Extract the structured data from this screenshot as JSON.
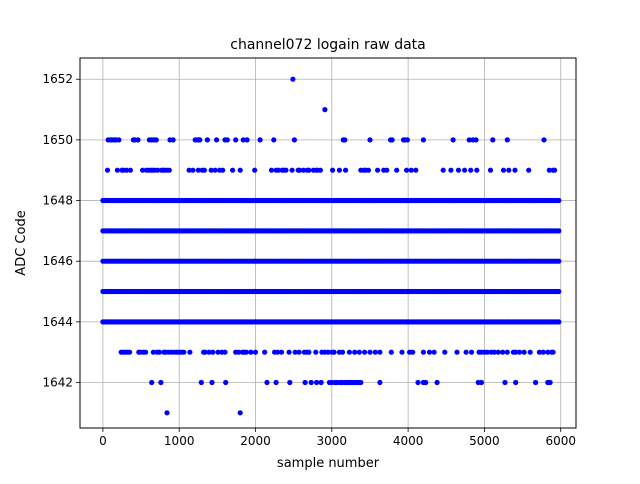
{
  "chart_data": {
    "type": "scatter",
    "title": "channel072 logain raw data",
    "xlabel": "sample number",
    "ylabel": "ADC Code",
    "xlim": [
      -300,
      6200
    ],
    "ylim": [
      1640.5,
      1652.7
    ],
    "xticks": [
      0,
      1000,
      2000,
      3000,
      4000,
      5000,
      6000
    ],
    "xtick_labels": [
      "0",
      "1000",
      "2000",
      "3000",
      "4000",
      "5000",
      "6000"
    ],
    "yticks": [
      1642,
      1644,
      1646,
      1648,
      1650,
      1652
    ],
    "ytick_labels": [
      "1642",
      "1644",
      "1646",
      "1648",
      "1650",
      "1652"
    ],
    "grid": true,
    "marker_color": "#0000ff",
    "series": [
      {
        "n_samples": 6000,
        "dense_levels": [
          1644,
          1645,
          1646,
          1647,
          1648
        ],
        "sparse_points": {
          "1652": [
            2490
          ],
          "1651": [
            2910
          ],
          "1650": [
            70,
            100,
            120,
            150,
            170,
            210,
            400,
            420,
            460,
            610,
            640,
            670,
            700,
            880,
            920,
            1210,
            1240,
            1250,
            1270,
            1370,
            1490,
            1600,
            1630,
            1740,
            1840,
            1890,
            2060,
            2240,
            2510,
            3150,
            3170,
            3500,
            3770,
            3790,
            3940,
            3960,
            3990,
            4200,
            4590,
            4800,
            4850,
            4890,
            5110,
            5300,
            5780
          ],
          "1649": [
            60,
            190,
            250,
            270,
            310,
            360,
            520,
            570,
            600,
            630,
            650,
            680,
            720,
            770,
            790,
            810,
            840,
            870,
            1130,
            1180,
            1250,
            1300,
            1330,
            1420,
            1470,
            1530,
            1570,
            1700,
            1800,
            1990,
            2210,
            2270,
            2300,
            2350,
            2370,
            2400,
            2480,
            2560,
            2580,
            2630,
            2680,
            2700,
            2760,
            2800,
            2810,
            2850,
            3010,
            3100,
            3180,
            3380,
            3420,
            3440,
            3480,
            3600,
            3680,
            3720,
            3850,
            3980,
            4040,
            4100,
            4460,
            4560,
            4660,
            4740,
            4820,
            4900,
            5080,
            5250,
            5320,
            5400,
            5580,
            5850,
            5900,
            5920
          ],
          "1643": [
            240,
            260,
            290,
            320,
            350,
            470,
            490,
            530,
            560,
            660,
            710,
            740,
            800,
            820,
            860,
            900,
            940,
            970,
            1000,
            1030,
            1060,
            1140,
            1320,
            1340,
            1390,
            1440,
            1510,
            1560,
            1600,
            1740,
            1780,
            1830,
            1850,
            1880,
            1940,
            2000,
            2120,
            2250,
            2290,
            2340,
            2440,
            2520,
            2570,
            2640,
            2670,
            2700,
            2790,
            2870,
            2910,
            2950,
            3000,
            3030,
            3100,
            3140,
            3230,
            3300,
            3360,
            3430,
            3500,
            3570,
            3630,
            3780,
            3920,
            4020,
            4060,
            4200,
            4280,
            4340,
            4480,
            4640,
            4760,
            4830,
            4930,
            4960,
            5000,
            5040,
            5090,
            5130,
            5180,
            5240,
            5300,
            5380,
            5410,
            5460,
            5520,
            5600,
            5720,
            5770,
            5830,
            5880,
            5900
          ],
          "1642": [
            640,
            760,
            1290,
            1430,
            1610,
            2150,
            2270,
            2450,
            2650,
            2730,
            2800,
            2860,
            2970,
            3000,
            3040,
            3070,
            3110,
            3140,
            3170,
            3200,
            3220,
            3240,
            3260,
            3290,
            3310,
            3330,
            3360,
            3380,
            3630,
            4130,
            4200,
            4230,
            4380,
            4920,
            4960,
            5270,
            5410,
            5670,
            5830,
            5860
          ],
          "1641": [
            840,
            1800
          ]
        }
      }
    ]
  }
}
